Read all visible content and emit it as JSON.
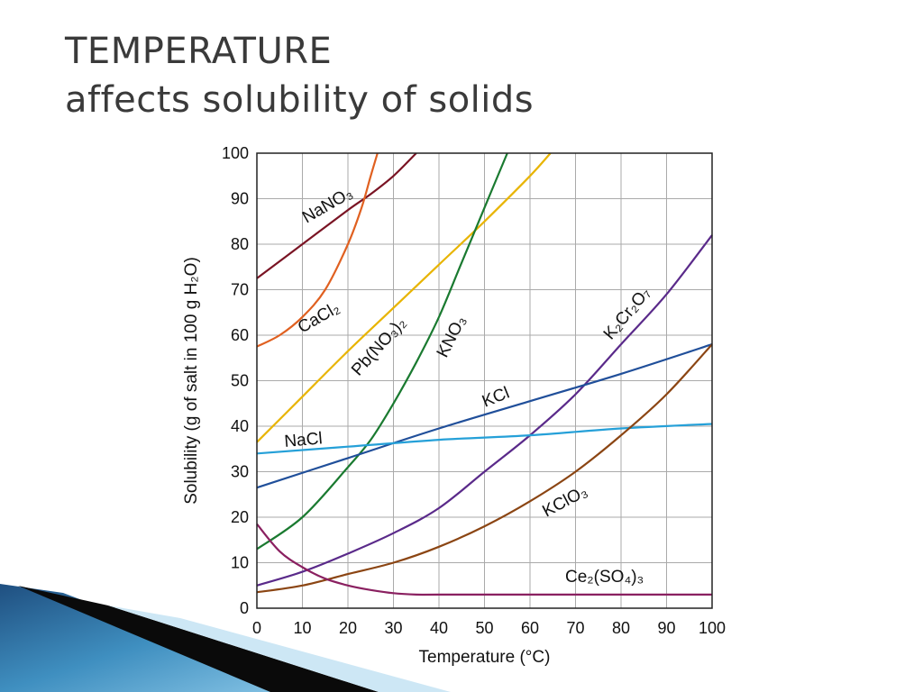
{
  "slide": {
    "title_line1": "TEMPERATURE",
    "title_line2": "affects solubility of solids"
  },
  "chart_data": {
    "type": "line",
    "xlabel": "Temperature (°C)",
    "ylabel": "Solubility (g of salt in 100 g H₂O)",
    "xlim": [
      0,
      100
    ],
    "ylim": [
      0,
      100
    ],
    "xticks": [
      "0",
      "10",
      "20",
      "30",
      "40",
      "50",
      "60",
      "70",
      "80",
      "90",
      "100"
    ],
    "yticks": [
      "0",
      "10",
      "20",
      "30",
      "40",
      "50",
      "60",
      "70",
      "80",
      "90",
      "100"
    ],
    "grid": true,
    "series": [
      {
        "name": "NaNO₃",
        "color": "#7a1424",
        "x": [
          0,
          10,
          20,
          25,
          30,
          35
        ],
        "y": [
          72.5,
          80,
          87.5,
          91,
          95,
          100
        ]
      },
      {
        "name": "CaCl₂",
        "color": "#e06020",
        "x": [
          0,
          5,
          10,
          15,
          20,
          23,
          25,
          26.5
        ],
        "y": [
          57.5,
          60,
          64,
          70,
          80,
          88,
          95,
          100
        ]
      },
      {
        "name": "Pb(NO₃)₂",
        "color": "#e8b400",
        "x": [
          0,
          10,
          20,
          30,
          40,
          50,
          60,
          64.5
        ],
        "y": [
          36.5,
          46.5,
          56.5,
          66,
          75.5,
          85,
          95,
          100
        ]
      },
      {
        "name": "KNO₃",
        "color": "#1a7a30",
        "x": [
          0,
          10,
          20,
          25,
          30,
          35,
          40,
          45,
          50,
          55
        ],
        "y": [
          13,
          20,
          31,
          37,
          45,
          54,
          64,
          76,
          88,
          100
        ]
      },
      {
        "name": "K₂Cr₂O₇",
        "color": "#5a2a8a",
        "x": [
          0,
          10,
          20,
          30,
          40,
          50,
          60,
          70,
          80,
          90,
          100
        ],
        "y": [
          5,
          8,
          12,
          16.5,
          22,
          30,
          38,
          47,
          58,
          69,
          82
        ]
      },
      {
        "name": "KCl",
        "color": "#204f9a",
        "x": [
          0,
          20,
          40,
          60,
          80,
          100
        ],
        "y": [
          26.5,
          33,
          39.5,
          45.5,
          51.5,
          58
        ]
      },
      {
        "name": "NaCl",
        "color": "#25a0d8",
        "x": [
          0,
          20,
          40,
          60,
          80,
          100
        ],
        "y": [
          34,
          35.5,
          37,
          38,
          39.5,
          40.5
        ]
      },
      {
        "name": "KClO₃",
        "color": "#8b4513",
        "x": [
          0,
          10,
          20,
          30,
          40,
          50,
          60,
          70,
          80,
          90,
          100
        ],
        "y": [
          3.5,
          5,
          7.5,
          10,
          13.5,
          18,
          23.5,
          30,
          38,
          47,
          58
        ]
      },
      {
        "name": "Ce₂(SO₄)₃",
        "color": "#8a2060",
        "x": [
          0,
          5,
          10,
          15,
          20,
          25,
          30,
          35,
          40,
          60,
          80,
          100
        ],
        "y": [
          18.5,
          12.5,
          9,
          6.5,
          5,
          4,
          3.3,
          3,
          3,
          3,
          3,
          3
        ]
      }
    ]
  }
}
